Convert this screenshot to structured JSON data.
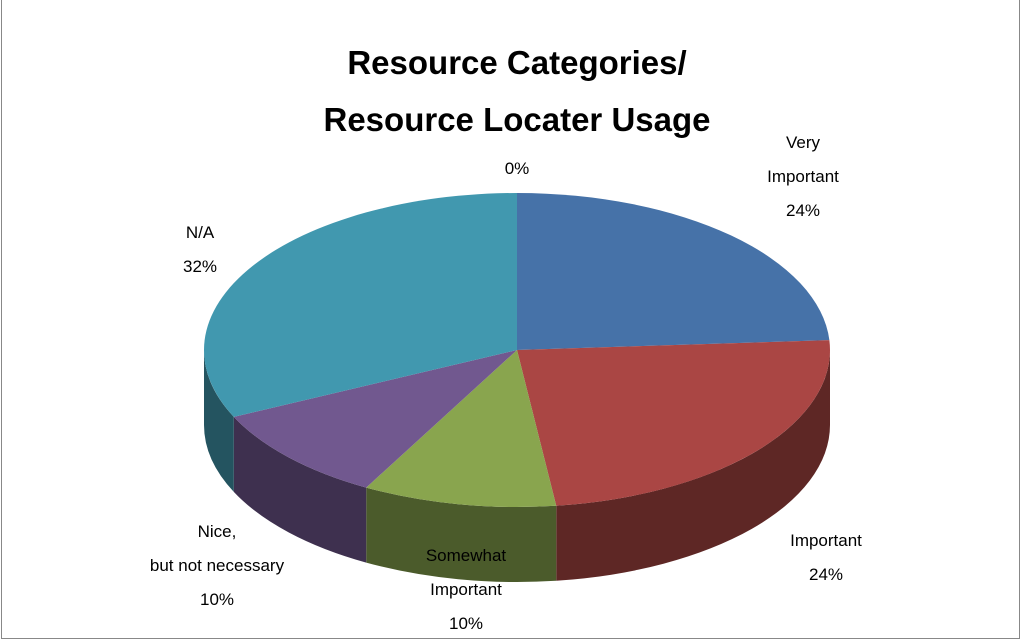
{
  "chart_data": {
    "type": "pie",
    "title": "Resource Categories/ Resource Locater Usage",
    "categories": [
      "Very\nImportant",
      "Important",
      "Somewhat\nImportant",
      "Nice,\nbut not necessary",
      "N/A",
      null
    ],
    "values": [
      24,
      24,
      10,
      10,
      32,
      0
    ],
    "value_labels": [
      "24%",
      "24%",
      "10%",
      "10%",
      "32%",
      "0%"
    ],
    "colors": [
      "#4672a8",
      "#aa4644",
      "#89a54e",
      "#71588f",
      "#4198af",
      "#da8137"
    ],
    "three_d": true
  }
}
